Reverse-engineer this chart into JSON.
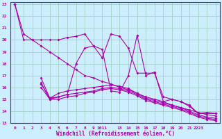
{
  "background_color": "#cceeff",
  "grid_color": "#99ccbb",
  "line_color": "#aa00aa",
  "xlabel": "Windchill (Refroidissement éolien,°C)",
  "xlim": [
    -0.5,
    23.5
  ],
  "ylim": [
    13,
    23.2
  ],
  "yticks": [
    13,
    14,
    15,
    16,
    17,
    18,
    19,
    20,
    21,
    22,
    23
  ],
  "xtick_pos": [
    0,
    1,
    2,
    3,
    4,
    5,
    6,
    7,
    8,
    9,
    10,
    11,
    12,
    13,
    14,
    15,
    16,
    17,
    18,
    19,
    20,
    21,
    22,
    23
  ],
  "xtick_labels": [
    "0",
    "1",
    "2",
    "3",
    "4",
    "5",
    "6",
    "7",
    "8",
    "9",
    "1011",
    "",
    "13",
    "14",
    "15",
    "16",
    "17",
    "18",
    "19",
    "20",
    "21",
    "2223",
    "",
    ""
  ],
  "series": [
    [
      23,
      20,
      20,
      20,
      20,
      20,
      20.2,
      20.3,
      20.5,
      19.5,
      18.5,
      20.5,
      20.3,
      19.3,
      17.2,
      17.2,
      17.2,
      15.2,
      15.0,
      14.8,
      14.4,
      13.8,
      13.8,
      13.8
    ],
    [
      23,
      20.5,
      20.0,
      19.5,
      19.0,
      18.5,
      18.0,
      17.5,
      17.0,
      16.8,
      16.5,
      16.3,
      16.0,
      15.8,
      15.5,
      15.2,
      15.0,
      14.8,
      14.5,
      14.3,
      14.1,
      13.9,
      13.7,
      13.6
    ],
    [
      null,
      null,
      null,
      16.8,
      15.1,
      15.5,
      15.7,
      15.8,
      15.9,
      16.0,
      16.1,
      16.2,
      16.1,
      15.9,
      15.5,
      15.1,
      14.9,
      14.7,
      14.5,
      14.3,
      14.0,
      13.7,
      13.5,
      13.4
    ],
    [
      null,
      null,
      null,
      16.3,
      15.1,
      15.2,
      15.4,
      15.5,
      15.6,
      15.7,
      15.9,
      16.0,
      15.9,
      15.7,
      15.4,
      15.0,
      14.8,
      14.6,
      14.4,
      14.2,
      13.9,
      13.6,
      13.4,
      13.3
    ],
    [
      null,
      null,
      null,
      16.0,
      15.0,
      15.0,
      15.2,
      15.3,
      15.5,
      15.6,
      15.8,
      15.9,
      15.8,
      15.6,
      15.3,
      14.9,
      14.7,
      14.5,
      14.3,
      14.1,
      13.8,
      13.5,
      13.3,
      13.2
    ],
    [
      null,
      null,
      null,
      16.4,
      15.0,
      15.2,
      15.4,
      18.0,
      19.3,
      19.5,
      19.2,
      15.7,
      15.6,
      17.0,
      20.4,
      17.0,
      17.3,
      14.8,
      15.0,
      14.8,
      14.5,
      13.8,
      13.9,
      13.8
    ]
  ]
}
